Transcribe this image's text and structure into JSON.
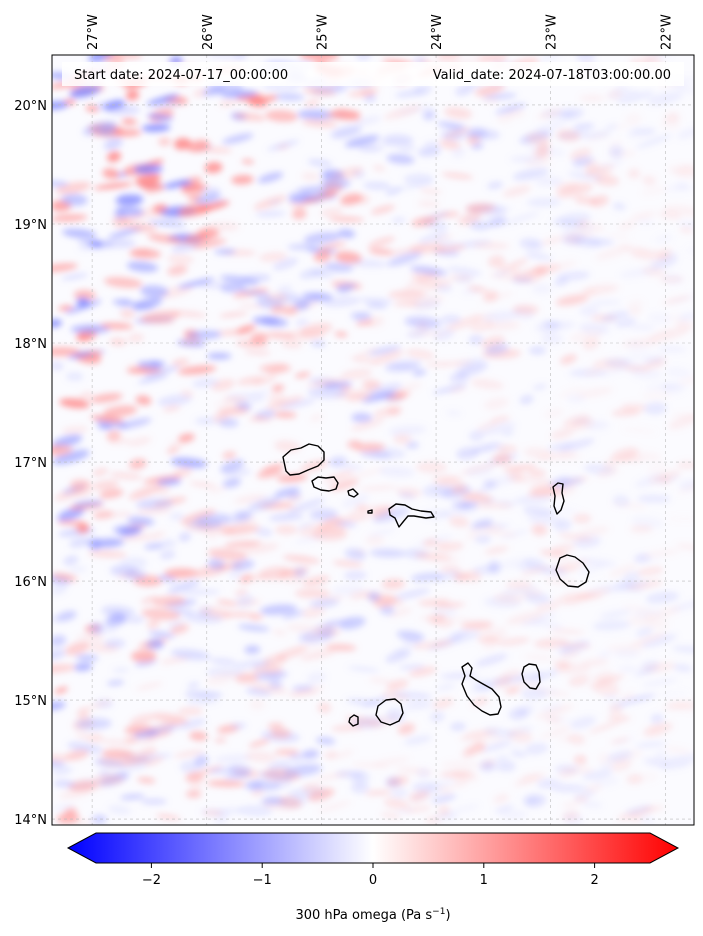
{
  "header": {
    "start_date": "Start date: 2024-07-17_00:00:00",
    "valid_date": "Valid_date: 2024-07-18T03:00:00.00"
  },
  "map": {
    "lon_ticks": [
      "27°W",
      "26°W",
      "25°W",
      "24°W",
      "23°W",
      "22°W"
    ],
    "lat_ticks": [
      "20°N",
      "19°N",
      "18°N",
      "17°N",
      "16°N",
      "15°N",
      "14°N"
    ],
    "lon_values": [
      -27,
      -26,
      -25,
      -24,
      -23,
      -22
    ],
    "lat_values": [
      20,
      19,
      18,
      17,
      16,
      15,
      14
    ],
    "lon_range": [
      -27.35,
      -21.75
    ],
    "lat_range": [
      13.95,
      20.42
    ]
  },
  "colorbar": {
    "label_text": "300 hPa omega (Pa s",
    "label_exp": "−1",
    "label_close": ")",
    "tick_labels": [
      "−2",
      "−1",
      "0",
      "1",
      "2"
    ],
    "tick_values": [
      -2,
      -1,
      0,
      1,
      2
    ],
    "range": [
      -2.5,
      2.5
    ],
    "colormap": "bwr",
    "extend": "both"
  }
}
